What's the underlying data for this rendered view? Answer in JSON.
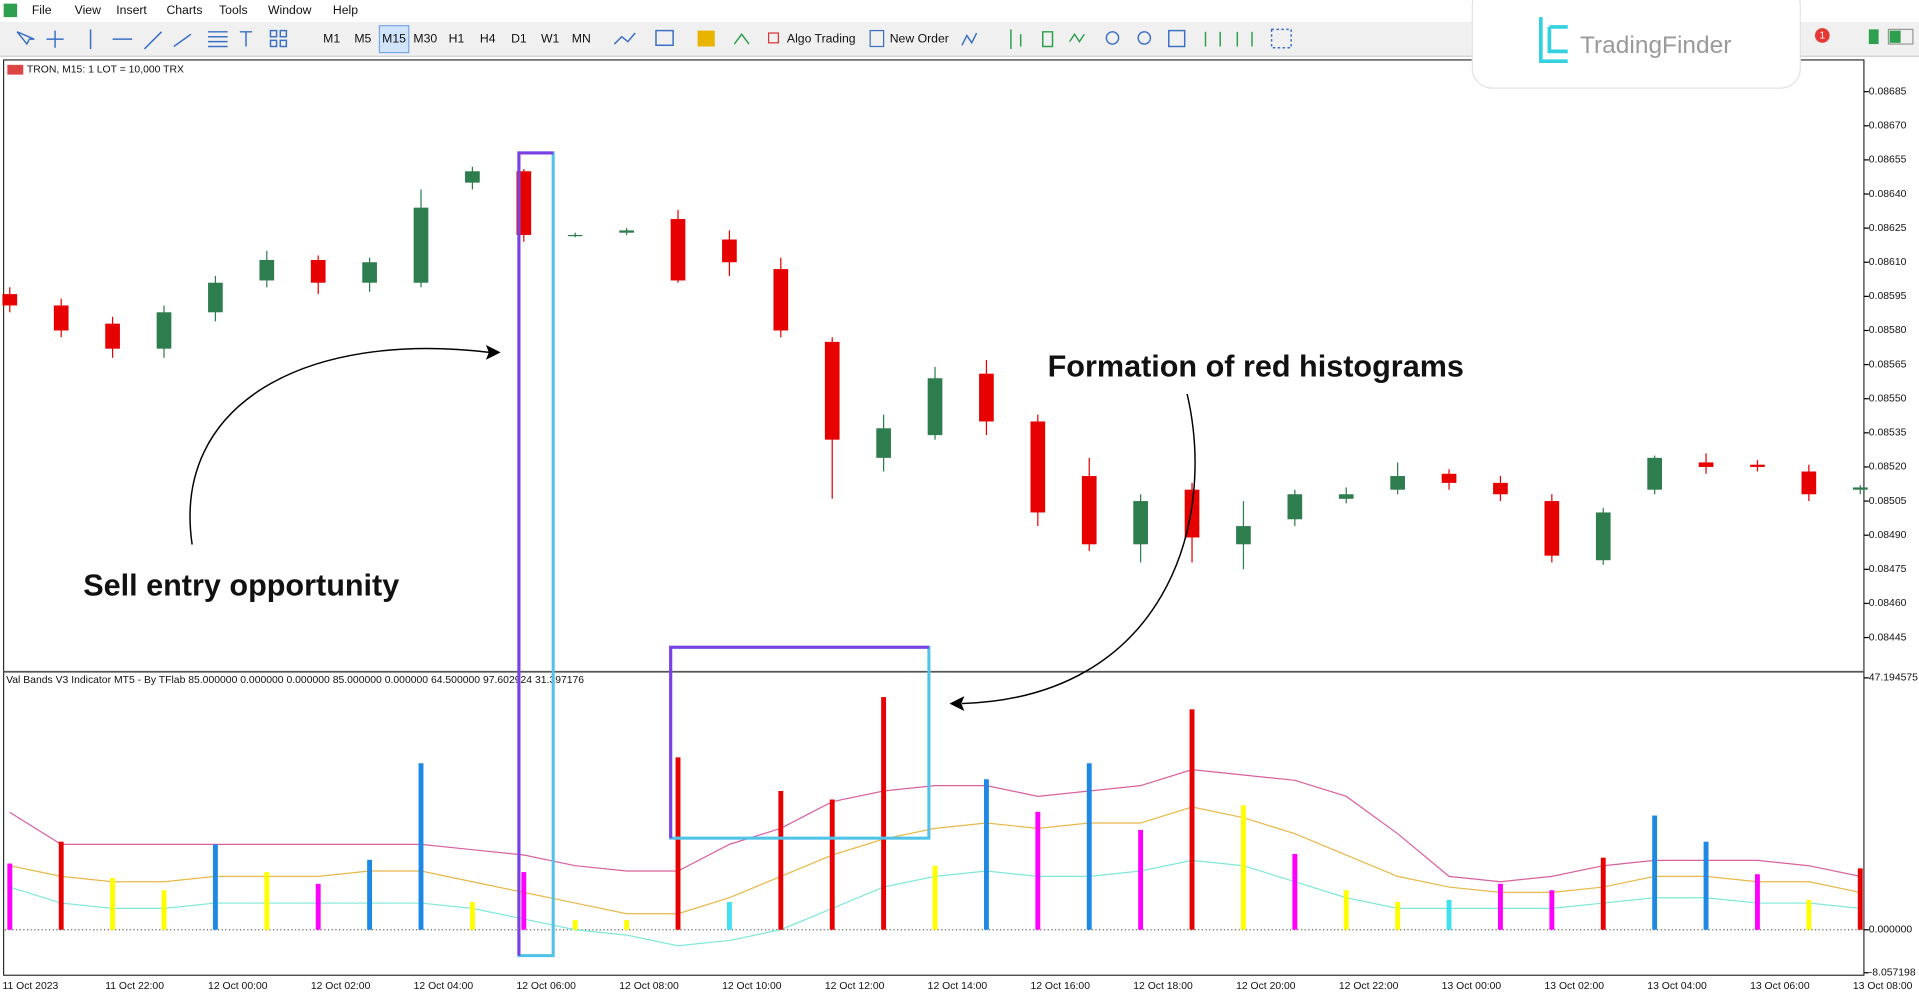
{
  "menu": [
    "File",
    "View",
    "Insert",
    "Charts",
    "Tools",
    "Window",
    "Help"
  ],
  "toolbar": {
    "timeframes": [
      "M1",
      "M5",
      "M15",
      "M30",
      "H1",
      "H4",
      "D1",
      "W1",
      "MN"
    ],
    "algo_trading": "Algo Trading",
    "new_order": "New Order"
  },
  "logo": "TradingFinder",
  "badge": 1,
  "annotations": {
    "sell": "Sell entry opportunity",
    "red": "Formation of red histograms"
  },
  "chart_data": [
    {
      "type": "candlestick",
      "title": "TRON, M15:  1 LOT = 10,000 TRX",
      "up_color": "#2e7d4f",
      "down_color": "#e60000",
      "open": [
        0.08596,
        0.08591,
        0.08583,
        0.08572,
        0.08588,
        0.08602,
        0.08611,
        0.08601,
        0.08601,
        0.08645,
        0.0865,
        0.08622,
        0.08623,
        0.08629,
        0.0862,
        0.08607,
        0.08575,
        0.08524,
        0.08534,
        0.08561,
        0.0854,
        0.08516,
        0.08486,
        0.0851,
        0.08486,
        0.08497,
        0.08506,
        0.0851,
        0.08517,
        0.08513,
        0.08505,
        0.08479,
        0.0851,
        0.08522,
        0.08521,
        0.08518,
        0.0851
      ],
      "high": [
        0.08599,
        0.08594,
        0.08586,
        0.08591,
        0.08604,
        0.08615,
        0.08613,
        0.08612,
        0.08642,
        0.08652,
        0.08651,
        0.08623,
        0.08625,
        0.08633,
        0.08624,
        0.08612,
        0.08577,
        0.08543,
        0.08564,
        0.08567,
        0.08543,
        0.08524,
        0.08508,
        0.08513,
        0.08505,
        0.0851,
        0.08511,
        0.08522,
        0.08519,
        0.08516,
        0.08508,
        0.08502,
        0.08525,
        0.08526,
        0.08523,
        0.08521,
        0.08512
      ],
      "low": [
        0.08588,
        0.08577,
        0.08568,
        0.08568,
        0.08584,
        0.08599,
        0.08596,
        0.08597,
        0.08599,
        0.08642,
        0.08619,
        0.08621,
        0.08622,
        0.08601,
        0.08604,
        0.08577,
        0.08506,
        0.08518,
        0.08532,
        0.08534,
        0.08494,
        0.08483,
        0.08478,
        0.08478,
        0.08475,
        0.08494,
        0.08504,
        0.08508,
        0.0851,
        0.08505,
        0.08478,
        0.08477,
        0.08508,
        0.08517,
        0.08518,
        0.08505,
        0.08508
      ],
      "close": [
        0.08591,
        0.0858,
        0.08572,
        0.08588,
        0.08601,
        0.08611,
        0.08601,
        0.0861,
        0.08634,
        0.0865,
        0.08622,
        0.08622,
        0.08624,
        0.08602,
        0.0861,
        0.0858,
        0.08532,
        0.08537,
        0.08559,
        0.0854,
        0.085,
        0.08486,
        0.08505,
        0.08489,
        0.08494,
        0.08508,
        0.08508,
        0.08516,
        0.08513,
        0.08508,
        0.08481,
        0.085,
        0.08524,
        0.0852,
        0.0852,
        0.08508,
        0.08511
      ],
      "ylim": [
        0.084305,
        0.086984
      ],
      "yticks": [
        0.08445,
        {
          "value": 0.0846,
          "label": "0.08460"
        },
        0.08475,
        {
          "value": 0.0849,
          "label": "0.08490"
        },
        0.08505,
        {
          "value": 0.0852,
          "label": "0.08520"
        },
        0.08535,
        {
          "value": 0.0855,
          "label": "0.08550"
        },
        0.08565,
        {
          "value": 0.0858,
          "label": "0.08580"
        },
        0.08595,
        {
          "value": 0.0861,
          "label": "0.08610"
        },
        0.08625,
        {
          "value": 0.0864,
          "label": "0.08640"
        },
        0.08655,
        {
          "value": 0.0867,
          "label": "0.08670"
        },
        0.08685
      ]
    },
    {
      "type": "bar",
      "title": "Val Bands V3 Indicator MT5 - By TFlab 85.000000 0.000000 0.000000 85.000000 0.000000 64.500000 97.602924 31.397176",
      "categories": [
        "11 Oct 2023",
        null,
        "11 Oct 22:00",
        null,
        "12 Oct 00:00",
        null,
        "12 Oct 02:00",
        null,
        "12 Oct 04:00",
        null,
        "12 Oct 06:00",
        null,
        "12 Oct 08:00",
        null,
        "12 Oct 10:00",
        null,
        "12 Oct 12:00",
        null,
        "12 Oct 14:00",
        null,
        "12 Oct 16:00",
        null,
        "12 Oct 18:00",
        null,
        "12 Oct 20:00",
        null,
        "12 Oct 22:00",
        null,
        "13 Oct 00:00",
        null,
        "13 Oct 02:00",
        null,
        "13 Oct 04:00",
        null,
        "13 Oct 06:00",
        null,
        "13 Oct 08:00"
      ],
      "values": [
        12.4,
        16.5,
        9.7,
        7.4,
        16.0,
        10.8,
        8.6,
        13.1,
        31.2,
        5.2,
        10.8,
        1.8,
        1.8,
        32.3,
        5.2,
        26.0,
        24.4,
        43.6,
        12.0,
        28.2,
        22.1,
        31.2,
        18.7,
        41.3,
        23.3,
        14.2,
        7.4,
        5.2,
        5.6,
        8.6,
        7.4,
        13.5,
        21.4,
        16.5,
        10.4,
        5.6,
        11.5
      ],
      "colors": [
        "#ff00ff",
        "#e60000",
        "#ffff00",
        "#ffff00",
        "#1e88e5",
        "#ffff00",
        "#ff00ff",
        "#1e88e5",
        "#1e88e5",
        "#ffff00",
        "#ff00ff",
        "#ffff00",
        "#ffff00",
        "#e60000",
        "#40e0f0",
        "#e60000",
        "#e60000",
        "#e60000",
        "#ffff00",
        "#1e88e5",
        "#ff00ff",
        "#1e88e5",
        "#ff00ff",
        "#e60000",
        "#ffff00",
        "#ff00ff",
        "#ffff00",
        "#ffff00",
        "#40e0f0",
        "#ff00ff",
        "#ff00ff",
        "#e60000",
        "#1e88e5",
        "#1e88e5",
        "#ff00ff",
        "#ffff00",
        "#e60000"
      ],
      "lines": [
        {
          "color": "#d9609e",
          "values": [
            22,
            16,
            16,
            16,
            16,
            16,
            16,
            16,
            16,
            15,
            14,
            12,
            11,
            11,
            16,
            19,
            24,
            26,
            27,
            27,
            25,
            26,
            27,
            30,
            29,
            28,
            25,
            18,
            10,
            9,
            10,
            12,
            13,
            13,
            13,
            12,
            10
          ]
        },
        {
          "color": "#e8b84a",
          "values": [
            12,
            10,
            9,
            9,
            10,
            10,
            10,
            11,
            11,
            9,
            7,
            5,
            3,
            3,
            6,
            10,
            14,
            17,
            19,
            20,
            19,
            20,
            20,
            23,
            21,
            18,
            14,
            10,
            8,
            7,
            7,
            8,
            10,
            10,
            9,
            9,
            7
          ]
        },
        {
          "color": "#7ee8d8",
          "values": [
            8,
            5,
            4,
            4,
            5,
            5,
            5,
            5,
            5,
            4,
            2,
            0,
            -1,
            -3,
            -2,
            0,
            4,
            8,
            10,
            11,
            10,
            10,
            11,
            13,
            12,
            9,
            6,
            4,
            4,
            4,
            4,
            5,
            6,
            6,
            5,
            5,
            4
          ]
        }
      ],
      "ylim": [
        -8.057198,
        47.194575
      ],
      "yticks": [
        47.194575,
        {
          "value": 0,
          "label": "0.000000"
        },
        -8.057198
      ]
    }
  ]
}
